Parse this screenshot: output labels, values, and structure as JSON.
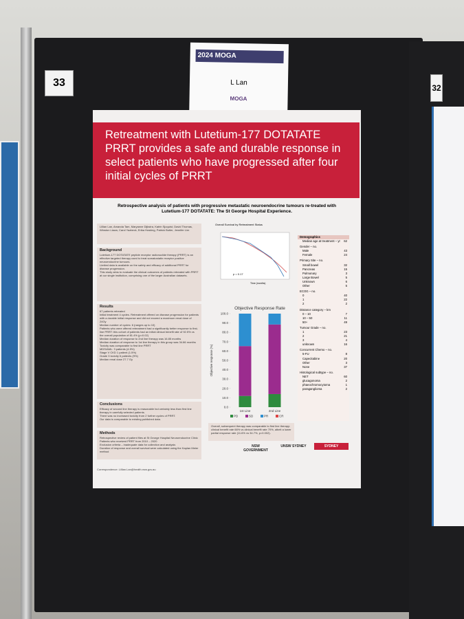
{
  "board": {
    "number": "33",
    "neighbor_number": "32"
  },
  "name_card": {
    "event": "2024 MOGA",
    "name": "L Lan",
    "logo": "MOGA"
  },
  "poster": {
    "title": "Retreatment with Lutetium-177 DOTATATE PRRT provides a safe and durable response in select patients who have progressed after four initial cycles of PRRT",
    "subtitle": "Retrospective analysis of patients with progressive metastatic neuroendocrine tumours re-treated with Lutetium-177 DOTATATE: The St George Hospital Experience.",
    "authors": "Lillian Lan, Amanda Tam, Maryanne Dijkstra, Katrin Sjoquist, David Thomas, Winston Liauw, Carol Yazbeck, Erika Hosking, Patrick Butler, Jennifer Lim",
    "sections": [
      {
        "heading": "Background",
        "lines": [
          "Lutetium-177 DOTATATE peptide receptor radionuclide therapy (PRRT) is an effective targeted therapy used to treat somatostatin receptor positive neuroendocrine tumours.",
          "Limited data is available on the safety and efficacy of additional PRRT for disease progression.",
          "This study aims to evaluate the clinical outcomes of patients retreated with PRRT at our single institution, comprising one of the larger Australian datasets."
        ]
      },
      {
        "heading": "Results",
        "lines": [
          "67 patients retreated",
          "Initial treatment 4 cycles. Retreatment offered on disease progression for patients with a durable initial response and did not exceed a maximum renal dose of 24Gy",
          "Median number of cycles: 6 (ranges up to 10)",
          "Patients who were offered retreatment had a significantly better response to first-line PRRT: this cohort of patients had an initial clinical benefit rate of 92.5% vs the overall population of 81.4% (p=0.02)",
          "Median duration of response to 2nd line therapy was 16.85 months",
          "Median duration of response to 1st line therapy in this group was 34.86 months",
          "Toxicity was comparable to first line PRRT",
          "MDS/AML: 3 patients (4.5%)",
          "Stage V CKD 1 patient (1.5%)",
          "Grade 3 toxicity 6 patients (9%)",
          "Median renal dose 27.7 Gy"
        ]
      },
      {
        "heading": "Conclusions",
        "lines": [
          "Efficacy of second line therapy is reasonable but certainly less than first line therapy in carefully selected patients.",
          "There was no increased toxicity from 2 further cycles of PRRT.",
          "Our data is comparable to existing published data."
        ]
      },
      {
        "heading": "Methods",
        "lines": [
          "Retrospective review of patient files at St George Hospital Neuroendocrine Clinic",
          "Patients who received PRRT from 2010 – 2020",
          "Exclusion criteria – inadequate data for collection and analysis",
          "Duration of response and overall survival were calculated using the Kaplan Meier method"
        ]
      }
    ],
    "survival_title": "Overall Survival by Retreatment Status",
    "survival_pvalue": "p = 0.17",
    "survival_xlabel": "Time (months)",
    "demographics": {
      "heading": "Demographics",
      "rows": [
        [
          "Median age at treatment – yr",
          "62"
        ],
        [
          "Gender – no."
        ],
        [
          "Male",
          "43"
        ],
        [
          "Female",
          "24"
        ],
        [
          "Primary Site – no."
        ],
        [
          "Small bowel",
          "32"
        ],
        [
          "Pancreas",
          "15"
        ],
        [
          "Pulmonary",
          "3"
        ],
        [
          "Large Bowel",
          "5"
        ],
        [
          "Unknown",
          "6"
        ],
        [
          "Other",
          "5"
        ],
        [
          "ECOG – no."
        ],
        [
          "0",
          "40"
        ],
        [
          "1",
          "22"
        ],
        [
          "2",
          "2"
        ],
        [
          "Distance category – km"
        ],
        [
          "0 – 10",
          "7"
        ],
        [
          "10 – 50",
          "11"
        ],
        [
          "50+",
          "49"
        ],
        [
          "Tumour Grade – no."
        ],
        [
          "1",
          "23"
        ],
        [
          "2",
          "21"
        ],
        [
          "3",
          "4"
        ],
        [
          "unknown",
          "16"
        ],
        [
          "Concurrent Chemo – no."
        ],
        [
          "5-FU",
          "8"
        ],
        [
          "Capecitabine",
          "20"
        ],
        [
          "Other",
          "3"
        ],
        [
          "None",
          "37"
        ],
        [
          "Histological subtype – no."
        ],
        [
          "NET",
          "60"
        ],
        [
          "glucagonoma",
          "2"
        ],
        [
          "phaeochromocytoma",
          "1"
        ],
        [
          "paraganglioma",
          "2"
        ]
      ]
    },
    "summary": "Overall, subsequent therapy was comparable to first line therapy: clinical benefit rate 66% vs clinical benefit rate 70%, albeit a lower partial response rate (11.6% vs 34.7%, p=0.002).",
    "correspondence": "Correspondence: Lillian.Lan@health.nsw.gov.au",
    "logos": [
      "NSW GOVERNMENT",
      "UNSW SYDNEY",
      "SYDNEY"
    ]
  },
  "chart_data": {
    "type": "bar",
    "title": "Objective Response Rate",
    "y_label": "Objective response (%)",
    "categories": [
      "1st Line",
      "2nd Line"
    ],
    "series": [
      {
        "name": "PD",
        "color": "#2e8b3e",
        "values": [
          12,
          14
        ]
      },
      {
        "name": "SD",
        "color": "#9b2c8e",
        "values": [
          53.3,
          74.4
        ]
      },
      {
        "name": "PR",
        "color": "#2d8fd0",
        "values": [
          34.7,
          11.6
        ]
      },
      {
        "name": "CR",
        "color": "#d44",
        "values": [
          0,
          0
        ]
      }
    ],
    "ylim": [
      0,
      100
    ],
    "yticks": [
      {
        "value": 0,
        "label": "0.0"
      },
      {
        "value": 10,
        "label": "10.0"
      },
      {
        "value": 20,
        "label": "20.0"
      },
      {
        "value": 30,
        "label": "30.0"
      },
      {
        "value": 40,
        "label": "40.0"
      },
      {
        "value": 50,
        "label": "50.0"
      },
      {
        "value": 60,
        "label": "60.0"
      },
      {
        "value": 70,
        "label": "70.0"
      },
      {
        "value": 80,
        "label": "80.0"
      },
      {
        "value": 90,
        "label": "90.0"
      },
      {
        "value": 100,
        "label": "100.0"
      }
    ]
  }
}
